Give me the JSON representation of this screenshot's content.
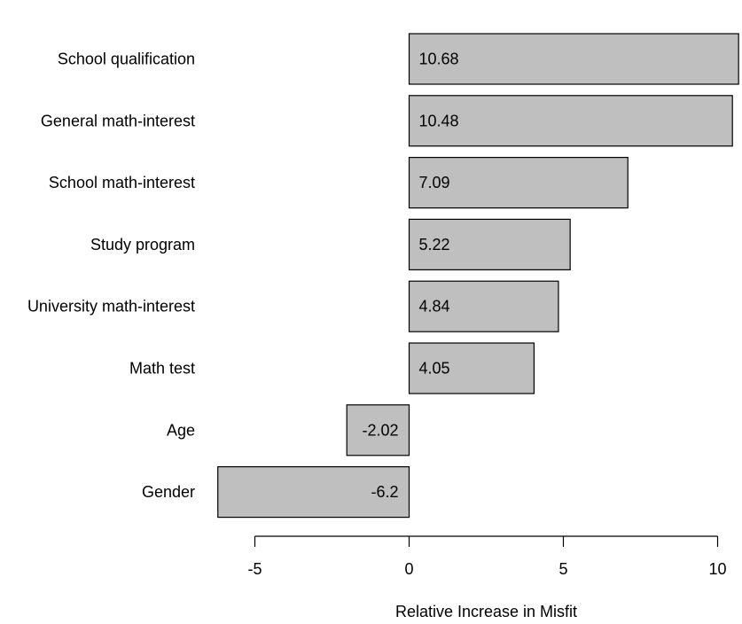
{
  "chart_data": {
    "type": "bar",
    "orientation": "horizontal",
    "categories": [
      "School qualification",
      "General math-interest",
      "School math-interest",
      "Study program",
      "University math-interest",
      "Math test",
      "Age",
      "Gender"
    ],
    "values": [
      10.68,
      10.48,
      7.09,
      5.22,
      4.84,
      4.05,
      -2.02,
      -6.2
    ],
    "value_labels": [
      "10.68",
      "10.48",
      "7.09",
      "5.22",
      "4.84",
      "4.05",
      "-2.02",
      "-6.2"
    ],
    "xlabel": "Relative Increase in Misfit",
    "ylabel": "",
    "title": "",
    "xlim": [
      -6.2,
      10.68
    ],
    "xticks": [
      -5,
      0,
      5,
      10
    ],
    "xtick_labels": [
      "-5",
      "0",
      "5",
      "10"
    ],
    "grid": false,
    "bar_color": "#bfbfbf",
    "edge_color": "#000000"
  }
}
